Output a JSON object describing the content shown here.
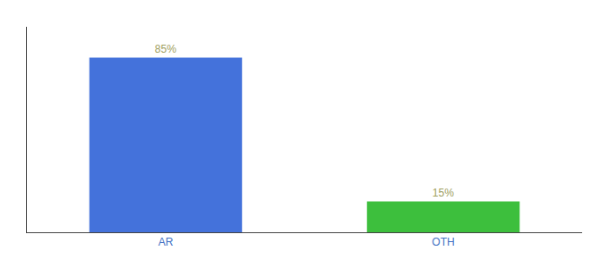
{
  "chart_data": {
    "type": "bar",
    "categories": [
      "AR",
      "OTH"
    ],
    "values": [
      85,
      15
    ],
    "value_labels": [
      "85%",
      "15%"
    ],
    "colors": [
      "#4472db",
      "#3dbf3d"
    ],
    "data_labels": true,
    "ylim": [
      0,
      100
    ],
    "grid": false,
    "tick_labels": "x"
  }
}
